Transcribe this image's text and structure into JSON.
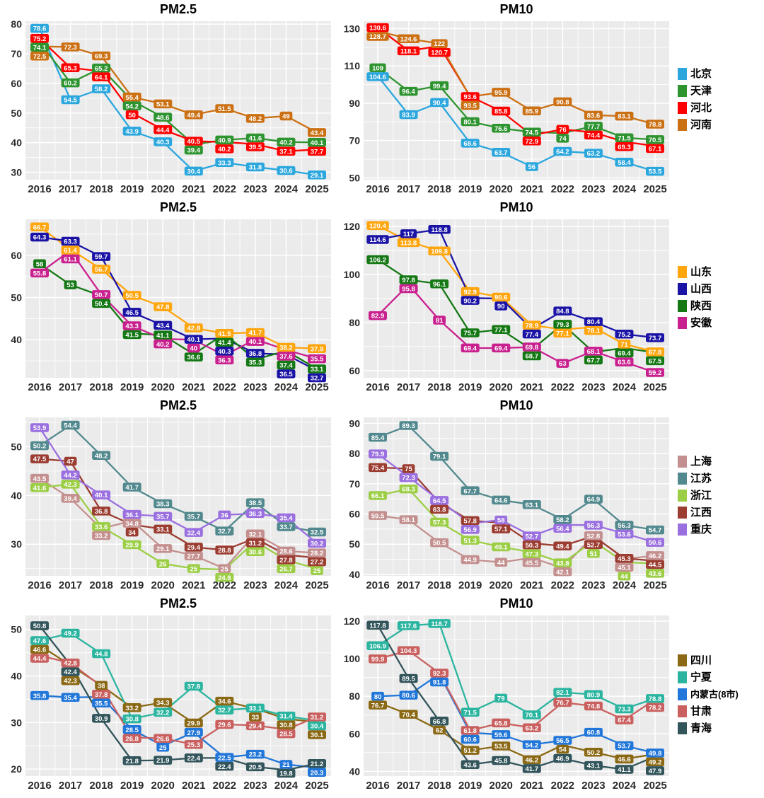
{
  "page": {
    "background": "#ffffff",
    "panel_background": "#EBEBEB",
    "grid_color": "#ffffff",
    "axis_text_color": "#2b2b2b"
  },
  "years": [
    "2016",
    "2017",
    "2018",
    "2019",
    "2020",
    "2021",
    "2022",
    "2023",
    "2024",
    "2025"
  ],
  "chart_data": [
    {
      "type": "line",
      "row": 0,
      "panel": 0,
      "title": "PM2.5",
      "x": [
        2016,
        2017,
        2018,
        2019,
        2020,
        2021,
        2022,
        2023,
        2024,
        2025
      ],
      "ylim": [
        27.5,
        81
      ],
      "yticks": [
        30,
        40,
        50,
        60,
        70,
        80
      ],
      "grid": true,
      "point_labels": true,
      "series": [
        {
          "name": "北京",
          "color": "#2BA7DE",
          "values": [
            78.6,
            54.5,
            58.2,
            43.9,
            40.3,
            30.4,
            33.3,
            31.8,
            30.6,
            29.1
          ]
        },
        {
          "name": "天津",
          "color": "#2E9430",
          "values": [
            74.1,
            60.2,
            65.2,
            54.2,
            48.6,
            39.4,
            40.9,
            41.6,
            40.2,
            40.1
          ]
        },
        {
          "name": "河北",
          "color": "#FF0000",
          "values": [
            75.2,
            65.3,
            64.1,
            50,
            44.4,
            40.5,
            40.2,
            39.5,
            37.1,
            37.7
          ]
        },
        {
          "name": "河南",
          "color": "#CC7014",
          "values": [
            72.5,
            72.3,
            69.3,
            55.4,
            53.1,
            49.4,
            51.5,
            48.2,
            49,
            43.4
          ]
        }
      ]
    },
    {
      "type": "line",
      "row": 0,
      "panel": 1,
      "title": "PM10",
      "x": [
        2016,
        2017,
        2018,
        2019,
        2020,
        2021,
        2022,
        2023,
        2024,
        2025
      ],
      "ylim": [
        49,
        134
      ],
      "yticks": [
        50,
        70,
        90,
        110,
        130
      ],
      "grid": true,
      "point_labels": true,
      "series": [
        {
          "name": "北京",
          "color": "#2BA7DE",
          "values": [
            104.6,
            83.9,
            90.4,
            68.6,
            63.7,
            56,
            64.2,
            63.2,
            58.4,
            53.5
          ]
        },
        {
          "name": "天津",
          "color": "#2E9430",
          "values": [
            109,
            96.4,
            99.4,
            80.1,
            76.6,
            74.5,
            74,
            77.7,
            71.5,
            70.5
          ]
        },
        {
          "name": "河北",
          "color": "#FF0000",
          "values": [
            130.6,
            118.1,
            120.7,
            93.6,
            85.8,
            72.9,
            76,
            74.4,
            69.3,
            67.1
          ]
        },
        {
          "name": "河南",
          "color": "#CC7014",
          "values": [
            128.7,
            124.6,
            122,
            93.5,
            95.9,
            85.9,
            90.8,
            83.6,
            83.1,
            78.8
          ]
        }
      ]
    },
    {
      "type": "line",
      "row": 1,
      "panel": 0,
      "title": "PM2.5",
      "x": [
        2016,
        2017,
        2018,
        2019,
        2020,
        2021,
        2022,
        2023,
        2024,
        2025
      ],
      "ylim": [
        31,
        68.5
      ],
      "yticks": [
        40,
        50,
        60
      ],
      "grid": true,
      "point_labels": true,
      "series": [
        {
          "name": "山东",
          "color": "#FFA50D",
          "values": [
            66.7,
            61.4,
            56.7,
            50.5,
            47.8,
            42.8,
            41.5,
            41.7,
            38.2,
            37.9
          ]
        },
        {
          "name": "山西",
          "color": "#1A13A6",
          "values": [
            64.3,
            63.3,
            59.7,
            46.5,
            43.4,
            40.1,
            40.3,
            36.8,
            36.5,
            32.7
          ]
        },
        {
          "name": "陕西",
          "color": "#147814",
          "values": [
            58,
            53,
            50.4,
            41.5,
            41.1,
            36.6,
            41.4,
            35.3,
            37.4,
            33.1
          ]
        },
        {
          "name": "安徽",
          "color": "#C9208F",
          "values": [
            55.8,
            61.1,
            50.7,
            43.3,
            40.2,
            40,
            36.3,
            40.1,
            37.6,
            35.5
          ]
        }
      ]
    },
    {
      "type": "line",
      "row": 1,
      "panel": 1,
      "title": "PM10",
      "x": [
        2016,
        2017,
        2018,
        2019,
        2020,
        2021,
        2022,
        2023,
        2024,
        2025
      ],
      "ylim": [
        57,
        123
      ],
      "yticks": [
        60,
        80,
        100,
        120
      ],
      "grid": true,
      "point_labels": true,
      "series": [
        {
          "name": "山东",
          "color": "#FFA50D",
          "values": [
            120.4,
            113.8,
            109.8,
            92.9,
            90.6,
            78.9,
            77.1,
            78.1,
            71,
            67.8
          ]
        },
        {
          "name": "山西",
          "color": "#1A13A6",
          "values": [
            114.6,
            117,
            118.8,
            90.2,
            90,
            77.4,
            84.8,
            80.4,
            75.2,
            73.7
          ]
        },
        {
          "name": "陕西",
          "color": "#147814",
          "values": [
            106.2,
            97.8,
            96.1,
            75.7,
            77.1,
            68.7,
            79.3,
            67.7,
            69.4,
            67.5
          ]
        },
        {
          "name": "安徽",
          "color": "#C9208F",
          "values": [
            82.9,
            95.8,
            81,
            69.4,
            69.4,
            69.8,
            63,
            68.1,
            63.6,
            59.2
          ]
        }
      ]
    },
    {
      "type": "line",
      "row": 2,
      "panel": 0,
      "title": "PM2.5",
      "x": [
        2016,
        2017,
        2018,
        2019,
        2020,
        2021,
        2022,
        2023,
        2024,
        2025
      ],
      "ylim": [
        23.5,
        56
      ],
      "yticks": [
        30,
        40,
        50
      ],
      "grid": true,
      "point_labels": true,
      "series": [
        {
          "name": "上海",
          "color": "#C4908F",
          "values": [
            43.5,
            39.4,
            33.2,
            34.8,
            29.1,
            27.7,
            25,
            32.1,
            28.6,
            28.2
          ]
        },
        {
          "name": "江苏",
          "color": "#52898E",
          "values": [
            50.2,
            54.4,
            48.2,
            41.7,
            38.3,
            35.7,
            32.7,
            38.5,
            33.7,
            32.5
          ]
        },
        {
          "name": "浙江",
          "color": "#9CCE45",
          "values": [
            41.6,
            42.3,
            33.6,
            29.9,
            26,
            25,
            24.8,
            30.6,
            26.7,
            25
          ]
        },
        {
          "name": "江西",
          "color": "#9C3D32",
          "values": [
            47.5,
            47,
            36.8,
            34,
            33.1,
            29.4,
            28.8,
            31.2,
            27.8,
            27.2
          ]
        },
        {
          "name": "重庆",
          "color": "#9A6FE0",
          "values": [
            53.9,
            44.2,
            40.1,
            36.1,
            35.7,
            32.4,
            36,
            36.3,
            35.4,
            30.2
          ]
        }
      ]
    },
    {
      "type": "line",
      "row": 2,
      "panel": 1,
      "title": "PM10",
      "x": [
        2016,
        2017,
        2018,
        2019,
        2020,
        2021,
        2022,
        2023,
        2024,
        2025
      ],
      "ylim": [
        39.5,
        92
      ],
      "yticks": [
        40,
        50,
        60,
        70,
        80,
        90
      ],
      "grid": true,
      "point_labels": true,
      "series": [
        {
          "name": "上海",
          "color": "#C4908F",
          "values": [
            59.5,
            58.1,
            50.5,
            44.9,
            44,
            45.5,
            42.1,
            52.8,
            45.1,
            46.2
          ]
        },
        {
          "name": "江苏",
          "color": "#52898E",
          "values": [
            85.4,
            89.3,
            79.1,
            67.7,
            64.6,
            63.1,
            58.2,
            64.9,
            56.3,
            54.7
          ]
        },
        {
          "name": "浙江",
          "color": "#9CCE45",
          "values": [
            66.1,
            68.3,
            57.3,
            51.3,
            49.1,
            47.3,
            43.8,
            51,
            44,
            43.6
          ]
        },
        {
          "name": "江西",
          "color": "#9C3D32",
          "values": [
            75.4,
            75,
            63.8,
            57.8,
            57.1,
            50.3,
            49.4,
            52.7,
            45.3,
            44.5
          ]
        },
        {
          "name": "重庆",
          "color": "#9A6FE0",
          "values": [
            79.9,
            72.3,
            64.5,
            56.9,
            58,
            52.7,
            56.4,
            56.3,
            53.6,
            50.6
          ]
        }
      ]
    },
    {
      "type": "line",
      "row": 3,
      "panel": 0,
      "title": "PM2.5",
      "x": [
        2016,
        2017,
        2018,
        2019,
        2020,
        2021,
        2022,
        2023,
        2024,
        2025
      ],
      "ylim": [
        18.5,
        53
      ],
      "yticks": [
        20,
        30,
        40,
        50
      ],
      "grid": true,
      "point_labels": true,
      "series": [
        {
          "name": "四川",
          "color": "#8B6914",
          "values": [
            46.6,
            42.3,
            38,
            33.2,
            34.3,
            29.9,
            34.6,
            33,
            30.8,
            30.1
          ]
        },
        {
          "name": "宁夏",
          "color": "#2BB5A0",
          "values": [
            47.6,
            49.2,
            44.8,
            30.8,
            32.2,
            37.8,
            32.7,
            33.1,
            31.4,
            30.4
          ]
        },
        {
          "name": "内蒙古(8市)",
          "color": "#2176D9",
          "values": [
            35.8,
            35.4,
            35.5,
            28.5,
            25,
            27.9,
            22.5,
            23.2,
            21,
            20.3
          ]
        },
        {
          "name": "甘肃",
          "color": "#C9605F",
          "values": [
            44.4,
            42.8,
            37.8,
            26.8,
            26.6,
            25.3,
            29.6,
            29.4,
            28.5,
            31.2
          ]
        },
        {
          "name": "青海",
          "color": "#32545B",
          "values": [
            50.8,
            42.4,
            30.9,
            21.8,
            21.9,
            22.4,
            22.4,
            20.5,
            19.8,
            21.2
          ]
        }
      ]
    },
    {
      "type": "line",
      "row": 3,
      "panel": 1,
      "title": "PM10",
      "x": [
        2016,
        2017,
        2018,
        2019,
        2020,
        2021,
        2022,
        2023,
        2024,
        2025
      ],
      "ylim": [
        37.5,
        123
      ],
      "yticks": [
        40,
        60,
        80,
        100,
        120
      ],
      "grid": true,
      "point_labels": true,
      "series": [
        {
          "name": "四川",
          "color": "#8B6914",
          "values": [
            76.7,
            70.4,
            62,
            51.2,
            53.5,
            46.2,
            54,
            50.2,
            46.6,
            49.2
          ]
        },
        {
          "name": "宁夏",
          "color": "#2BB5A0",
          "values": [
            106.9,
            117.6,
            118.7,
            71.5,
            79,
            70.1,
            82.1,
            80.9,
            73.3,
            78.8
          ]
        },
        {
          "name": "内蒙古(8市)",
          "color": "#2176D9",
          "values": [
            80,
            80.6,
            91.8,
            60.6,
            59.6,
            54.2,
            56.5,
            60.8,
            53.7,
            49.8
          ]
        },
        {
          "name": "甘肃",
          "color": "#C9605F",
          "values": [
            99.9,
            104.3,
            92.3,
            61.8,
            65.8,
            63.2,
            76.7,
            74.8,
            67.4,
            78.2
          ]
        },
        {
          "name": "青海",
          "color": "#32545B",
          "values": [
            117.8,
            89.5,
            66.8,
            43.6,
            45.8,
            41.7,
            46.9,
            43.1,
            41.1,
            47.9
          ]
        }
      ]
    }
  ]
}
